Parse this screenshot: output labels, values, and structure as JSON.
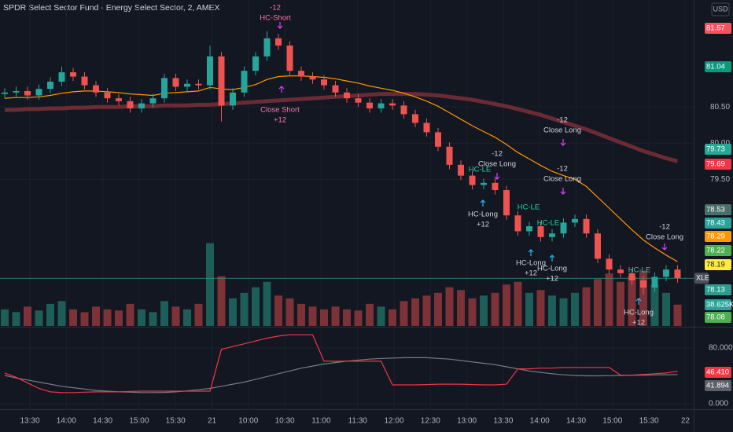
{
  "chart_data": {
    "type": "candlestick",
    "title": "SPDR Select Sector Fund - Energy Select Sector, 2, AMEX",
    "currency": "USD",
    "symbol": "XLE",
    "ylim": [
      77.47,
      81.98
    ],
    "yticks": [
      {
        "value": 79.5,
        "label": "79.50"
      },
      {
        "value": 80.0,
        "label": "80.00"
      },
      {
        "value": 80.5,
        "label": "80.50"
      }
    ],
    "xticks": [
      "13:30",
      "14:00",
      "14:30",
      "15:00",
      "15:30",
      "21",
      "10:00",
      "10:30",
      "11:00",
      "11:30",
      "12:00",
      "12:30",
      "13:00",
      "13:30",
      "14:00",
      "14:30",
      "15:00",
      "15:30",
      "22"
    ],
    "grid": true,
    "up_color": "#26a69a",
    "down_color": "#ef5350",
    "open": [
      80.68,
      80.7,
      80.72,
      80.66,
      80.75,
      80.85,
      80.98,
      80.92,
      80.8,
      80.7,
      80.62,
      80.58,
      80.48,
      80.55,
      80.62,
      80.9,
      80.78,
      80.82,
      80.8,
      81.2,
      80.52,
      80.7,
      81.0,
      81.2,
      81.45,
      81.35,
      81.0,
      80.92,
      80.88,
      80.8,
      80.7,
      80.62,
      80.56,
      80.48,
      80.55,
      80.52,
      80.4,
      80.28,
      80.15,
      79.95,
      79.7,
      79.55,
      79.42,
      79.45,
      79.35,
      79.0,
      78.78,
      78.85,
      78.7,
      78.75,
      78.9,
      78.95,
      78.75,
      78.4,
      78.25,
      78.2,
      78.1,
      78.0,
      78.15,
      78.25
    ],
    "high": [
      80.76,
      80.78,
      80.78,
      80.81,
      80.91,
      81.06,
      81.04,
      80.98,
      80.86,
      80.76,
      80.68,
      80.64,
      80.61,
      80.68,
      80.96,
      80.96,
      80.88,
      80.88,
      81.35,
      81.26,
      80.76,
      81.06,
      81.26,
      81.55,
      81.51,
      81.41,
      81.06,
      80.98,
      80.94,
      80.86,
      80.76,
      80.68,
      80.62,
      80.61,
      80.61,
      80.58,
      80.46,
      80.34,
      80.21,
      80.01,
      79.76,
      79.61,
      79.51,
      79.51,
      79.41,
      79.06,
      78.91,
      78.91,
      78.81,
      78.96,
      79.01,
      79.01,
      78.81,
      78.46,
      78.31,
      78.26,
      78.16,
      78.21,
      78.31,
      78.31
    ],
    "low": [
      80.62,
      80.64,
      80.6,
      80.6,
      80.69,
      80.79,
      80.86,
      80.74,
      80.64,
      80.56,
      80.52,
      80.42,
      80.42,
      80.49,
      80.56,
      80.72,
      80.72,
      80.74,
      80.74,
      80.3,
      80.46,
      80.64,
      80.94,
      81.14,
      81.29,
      80.94,
      80.86,
      80.82,
      80.74,
      80.64,
      80.56,
      80.5,
      80.42,
      80.42,
      80.46,
      80.34,
      80.22,
      80.09,
      79.89,
      79.64,
      79.49,
      79.36,
      79.36,
      79.29,
      78.94,
      78.72,
      78.72,
      78.64,
      78.64,
      78.69,
      78.84,
      78.69,
      78.34,
      78.19,
      78.14,
      78.04,
      77.9,
      77.94,
      78.09,
      78.07
    ],
    "close": [
      80.7,
      80.72,
      80.66,
      80.75,
      80.85,
      80.98,
      80.92,
      80.8,
      80.7,
      80.62,
      80.58,
      80.48,
      80.55,
      80.62,
      80.9,
      80.78,
      80.82,
      80.8,
      81.2,
      80.52,
      80.7,
      81.0,
      81.2,
      81.45,
      81.35,
      81.0,
      80.92,
      80.88,
      80.8,
      80.7,
      80.62,
      80.56,
      80.48,
      80.55,
      80.52,
      80.4,
      80.28,
      80.15,
      79.95,
      79.7,
      79.55,
      79.42,
      79.45,
      79.35,
      79.0,
      78.78,
      78.85,
      78.7,
      78.75,
      78.9,
      78.95,
      78.75,
      78.4,
      78.25,
      78.2,
      78.1,
      78.0,
      78.15,
      78.25,
      78.13
    ],
    "volume": [
      30,
      25,
      35,
      28,
      40,
      45,
      30,
      25,
      35,
      30,
      28,
      40,
      30,
      25,
      45,
      35,
      30,
      40,
      150,
      90,
      50,
      60,
      70,
      80,
      55,
      50,
      40,
      35,
      30,
      35,
      30,
      28,
      40,
      35,
      30,
      45,
      50,
      55,
      60,
      70,
      65,
      50,
      55,
      60,
      75,
      80,
      60,
      65,
      55,
      50,
      60,
      70,
      85,
      95,
      80,
      90,
      100,
      75,
      60,
      38.625
    ],
    "volume_ylim": [
      0,
      590
    ],
    "series": [
      {
        "color": "#7b2f37",
        "values": [
          80.46,
          80.46,
          80.47,
          80.47,
          80.48,
          80.48,
          80.49,
          80.49,
          80.5,
          80.5,
          80.5,
          80.51,
          80.51,
          80.51,
          80.52,
          80.52,
          80.52,
          80.53,
          80.53,
          80.54,
          80.55,
          80.56,
          80.57,
          80.58,
          80.59,
          80.6,
          80.61,
          80.62,
          80.63,
          80.64,
          80.65,
          80.66,
          80.67,
          80.68,
          80.68,
          80.68,
          80.68,
          80.67,
          80.66,
          80.64,
          80.62,
          80.6,
          80.57,
          80.54,
          80.51,
          80.47,
          80.43,
          80.39,
          80.34,
          80.29,
          80.24,
          80.19,
          80.13,
          80.07,
          80.01,
          79.95,
          79.89,
          79.84,
          79.79,
          79.75
        ]
      },
      {
        "color": "#ff9800",
        "values": [
          80.62,
          80.63,
          80.63,
          80.64,
          80.66,
          80.69,
          80.71,
          80.72,
          80.72,
          80.71,
          80.7,
          80.68,
          80.67,
          80.66,
          80.69,
          80.7,
          80.71,
          80.72,
          80.77,
          80.75,
          80.74,
          80.77,
          80.81,
          80.88,
          80.92,
          80.93,
          80.93,
          80.92,
          80.91,
          80.89,
          80.86,
          80.83,
          80.79,
          80.76,
          80.73,
          80.69,
          80.64,
          80.58,
          80.51,
          80.42,
          80.33,
          80.24,
          80.16,
          80.08,
          79.98,
          79.87,
          79.78,
          79.69,
          79.61,
          79.55,
          79.5,
          79.4,
          79.25,
          79.1,
          78.95,
          78.8,
          78.66,
          78.55,
          78.45,
          78.36
        ]
      }
    ],
    "last_line": 78.13,
    "price_labels": [
      {
        "label": "81.57",
        "color": "#f7525f"
      },
      {
        "label": "81.04",
        "color": "#089981"
      },
      {
        "label": "79.73",
        "color": "#22ab94"
      },
      {
        "label": "79.69",
        "color": "#f23645"
      },
      {
        "label": "78.53",
        "color": "#4a6e6a"
      },
      {
        "label": "78.43",
        "color": "#26a69a"
      },
      {
        "label": "78.29",
        "color": "#ff9800"
      },
      {
        "label": "78.22",
        "color": "#4caf50"
      },
      {
        "label": "78.19",
        "color": "#ffeb3b"
      },
      {
        "label": "78.13",
        "color": "#2a9d8f"
      },
      {
        "label": "38.625K",
        "color": "#26a69a"
      },
      {
        "label": "78.08",
        "color": "#4caf50"
      }
    ],
    "signals": [
      {
        "lines": [
          "-12",
          "HC-Short"
        ]
      },
      {
        "lines": [
          "Close Short",
          "+12"
        ]
      },
      {
        "lines": [
          "-12",
          "Close Long"
        ]
      },
      {
        "lines": [
          "-12",
          "Close Long"
        ]
      },
      {
        "lines": [
          "-12",
          "Close Long"
        ]
      },
      {
        "lines": [
          "HC-Long",
          "+12"
        ]
      },
      {
        "lines": [
          "HC-Long",
          "+12"
        ]
      },
      {
        "lines": [
          "HC-Long",
          "+12"
        ]
      },
      {
        "lines": [
          "-12",
          "Close Long"
        ]
      },
      {
        "lines": [
          "HC-Long",
          "+12"
        ]
      },
      {
        "lines": [
          "HC-LE"
        ]
      },
      {
        "lines": [
          "HC-LE"
        ]
      },
      {
        "lines": [
          "HC-LE"
        ]
      },
      {
        "lines": [
          "HC-LE"
        ]
      }
    ],
    "oscillator": {
      "ylim": [
        -6.8,
        108.2
      ],
      "yticks": [
        {
          "value": 80,
          "label": "80.000"
        },
        {
          "value": 0,
          "label": "0.000"
        }
      ],
      "series": [
        {
          "color": "#787b86",
          "values": [
            40.6,
            37,
            34,
            31,
            28,
            25,
            23,
            21,
            19,
            18,
            17,
            16.5,
            16,
            16,
            16.2,
            17,
            18.5,
            20,
            22,
            25,
            28,
            31,
            35,
            39,
            43,
            47,
            51,
            54,
            57,
            59,
            61,
            62.5,
            64,
            65,
            65.5,
            66,
            66,
            66,
            65,
            64,
            62,
            60,
            58,
            56,
            53,
            50,
            47,
            45,
            43,
            41.5,
            40.5,
            40,
            40,
            40.2,
            40.5,
            40.8,
            41,
            41.3,
            41.6,
            41.894
          ]
        },
        {
          "color": "#f23645",
          "values": [
            44,
            38,
            30,
            22,
            17,
            16,
            16,
            16.5,
            17,
            17,
            17,
            17.5,
            18,
            18,
            18,
            18,
            18,
            18,
            18,
            78,
            82,
            86,
            90,
            94,
            97,
            99,
            99,
            99,
            61,
            61,
            61,
            61,
            61,
            61,
            27,
            27,
            27,
            27.5,
            28,
            28,
            28,
            27.5,
            27,
            27,
            28,
            50,
            50,
            51,
            51,
            52,
            52,
            52,
            52,
            52,
            41,
            41,
            42,
            43,
            44,
            46.41
          ]
        }
      ],
      "labels": [
        {
          "label": "46.410",
          "color": "#f23645"
        },
        {
          "label": "41.894",
          "color": "#5d606b"
        }
      ]
    }
  }
}
